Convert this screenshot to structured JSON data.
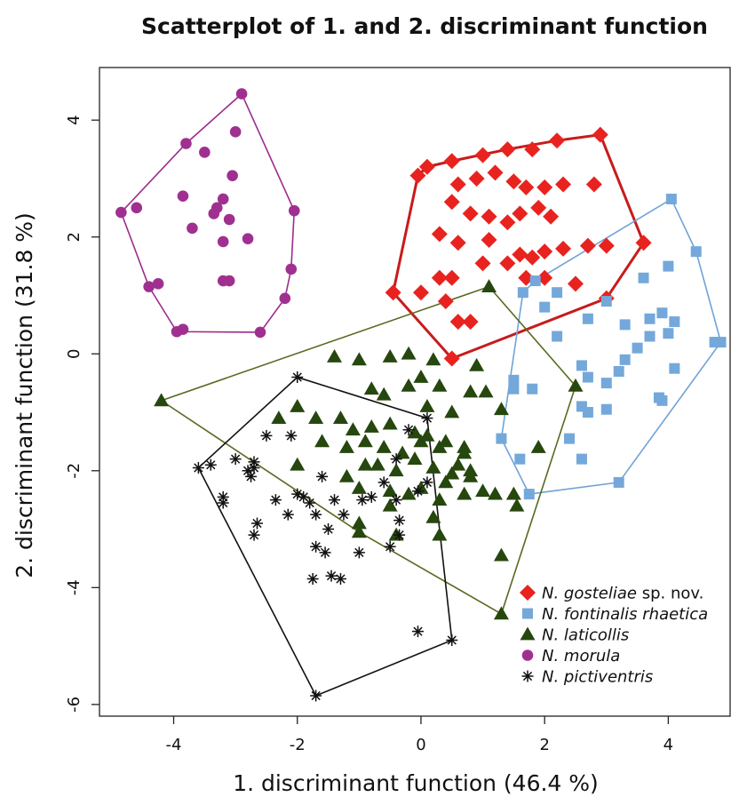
{
  "chart_data": {
    "type": "scatter",
    "title": "Scatterplot of 1. and 2. discriminant function",
    "xlabel": "1. discriminant function (46.4 %)",
    "ylabel": "2. discriminant function (31.8 %)",
    "xlim": [
      -5.2,
      5.0
    ],
    "ylim": [
      -6.2,
      4.9
    ],
    "xticks": [
      -4,
      -2,
      0,
      2,
      4
    ],
    "yticks": [
      -6,
      -4,
      -2,
      0,
      2,
      4
    ],
    "xtick_labels": [
      "-4",
      "-2",
      "0",
      "2",
      "4"
    ],
    "ytick_labels": [
      "-6",
      "-4",
      "-2",
      "0",
      "2",
      "4"
    ],
    "grid": false,
    "legend_position": "bottom-right",
    "series": [
      {
        "name_italic": "N. gosteliae",
        "name_suffix": " sp. nov.",
        "marker": "diamond",
        "color": "#e8231f",
        "hull_color": "#c81b1b",
        "points": [
          [
            -0.45,
            1.05
          ],
          [
            -0.05,
            3.05
          ],
          [
            0.1,
            3.2
          ],
          [
            0.5,
            3.3
          ],
          [
            1.0,
            3.4
          ],
          [
            1.4,
            3.5
          ],
          [
            1.8,
            3.5
          ],
          [
            2.2,
            3.65
          ],
          [
            2.9,
            3.75
          ],
          [
            0.6,
            2.9
          ],
          [
            0.9,
            3.0
          ],
          [
            1.2,
            3.1
          ],
          [
            1.5,
            2.95
          ],
          [
            1.7,
            2.85
          ],
          [
            2.0,
            2.85
          ],
          [
            2.3,
            2.9
          ],
          [
            2.8,
            2.9
          ],
          [
            0.5,
            2.6
          ],
          [
            0.8,
            2.4
          ],
          [
            1.1,
            2.35
          ],
          [
            1.4,
            2.25
          ],
          [
            1.6,
            2.4
          ],
          [
            1.9,
            2.5
          ],
          [
            2.1,
            2.35
          ],
          [
            0.3,
            2.05
          ],
          [
            0.6,
            1.9
          ],
          [
            1.1,
            1.95
          ],
          [
            1.6,
            1.7
          ],
          [
            1.8,
            1.65
          ],
          [
            2.0,
            1.75
          ],
          [
            2.3,
            1.8
          ],
          [
            2.7,
            1.85
          ],
          [
            3.0,
            1.85
          ],
          [
            3.6,
            1.9
          ],
          [
            0.3,
            1.3
          ],
          [
            0.5,
            1.3
          ],
          [
            1.0,
            1.55
          ],
          [
            1.4,
            1.55
          ],
          [
            1.7,
            1.3
          ],
          [
            2.0,
            1.3
          ],
          [
            0.0,
            1.05
          ],
          [
            0.4,
            0.9
          ],
          [
            0.8,
            0.55
          ],
          [
            0.6,
            0.55
          ],
          [
            2.5,
            1.2
          ],
          [
            3.0,
            0.95
          ],
          [
            0.5,
            -0.08
          ]
        ]
      },
      {
        "name_italic": "N. fontinalis rhaetica",
        "name_suffix": "",
        "marker": "square",
        "color": "#74a8da",
        "hull_color": "#6fa3d6",
        "points": [
          [
            4.05,
            2.65
          ],
          [
            4.45,
            1.75
          ],
          [
            1.85,
            1.25
          ],
          [
            2.2,
            1.05
          ],
          [
            3.6,
            1.3
          ],
          [
            4.0,
            1.5
          ],
          [
            2.0,
            0.8
          ],
          [
            2.7,
            0.6
          ],
          [
            3.0,
            0.9
          ],
          [
            3.3,
            0.5
          ],
          [
            3.7,
            0.6
          ],
          [
            3.9,
            0.7
          ],
          [
            4.1,
            0.55
          ],
          [
            4.0,
            0.35
          ],
          [
            3.7,
            0.3
          ],
          [
            3.5,
            0.1
          ],
          [
            3.3,
            -0.1
          ],
          [
            3.2,
            -0.3
          ],
          [
            2.6,
            -0.2
          ],
          [
            2.7,
            -0.4
          ],
          [
            4.1,
            -0.25
          ],
          [
            4.75,
            0.2
          ],
          [
            4.85,
            0.2
          ],
          [
            1.5,
            -0.6
          ],
          [
            1.5,
            -0.45
          ],
          [
            1.8,
            -0.6
          ],
          [
            2.6,
            -0.9
          ],
          [
            2.7,
            -1.0
          ],
          [
            3.0,
            -0.95
          ],
          [
            3.0,
            -0.5
          ],
          [
            3.9,
            -0.8
          ],
          [
            1.3,
            -1.45
          ],
          [
            2.4,
            -1.45
          ],
          [
            2.6,
            -1.8
          ],
          [
            3.2,
            -2.2
          ],
          [
            1.75,
            -2.4
          ],
          [
            1.65,
            1.05
          ],
          [
            3.85,
            -0.75
          ],
          [
            1.6,
            -1.8
          ],
          [
            2.2,
            0.3
          ]
        ]
      },
      {
        "name_italic": "N. laticollis",
        "name_suffix": "",
        "marker": "triangle",
        "color": "#26470e",
        "hull_color": "#566b20",
        "points": [
          [
            -4.2,
            -0.8
          ],
          [
            1.1,
            1.15
          ],
          [
            -1.4,
            -0.05
          ],
          [
            -1.0,
            -0.1
          ],
          [
            -0.5,
            -0.05
          ],
          [
            -0.2,
            0.0
          ],
          [
            0.2,
            -0.1
          ],
          [
            0.9,
            -0.2
          ],
          [
            2.5,
            -0.55
          ],
          [
            -0.8,
            -0.6
          ],
          [
            -0.6,
            -0.7
          ],
          [
            -0.2,
            -0.55
          ],
          [
            0.3,
            -0.55
          ],
          [
            0.8,
            -0.65
          ],
          [
            1.05,
            -0.65
          ],
          [
            1.3,
            -0.95
          ],
          [
            -2.0,
            -0.9
          ],
          [
            -1.7,
            -1.1
          ],
          [
            -1.3,
            -1.1
          ],
          [
            -1.1,
            -1.3
          ],
          [
            -0.8,
            -1.25
          ],
          [
            -0.5,
            -1.2
          ],
          [
            -0.1,
            -1.35
          ],
          [
            0.1,
            -1.4
          ],
          [
            0.4,
            -1.5
          ],
          [
            0.7,
            -1.7
          ],
          [
            -1.6,
            -1.5
          ],
          [
            -1.2,
            -1.6
          ],
          [
            -0.9,
            -1.5
          ],
          [
            -0.6,
            -1.6
          ],
          [
            -0.3,
            -1.7
          ],
          [
            0.0,
            -1.5
          ],
          [
            0.3,
            -1.6
          ],
          [
            0.6,
            -1.9
          ],
          [
            -2.0,
            -1.9
          ],
          [
            -1.2,
            -2.1
          ],
          [
            -0.7,
            -1.9
          ],
          [
            -0.4,
            -2.0
          ],
          [
            -0.1,
            -1.8
          ],
          [
            0.2,
            -1.95
          ],
          [
            0.5,
            -2.05
          ],
          [
            0.8,
            -2.1
          ],
          [
            -0.5,
            -2.35
          ],
          [
            -0.2,
            -2.4
          ],
          [
            0.0,
            -2.3
          ],
          [
            0.4,
            -2.2
          ],
          [
            0.7,
            -2.4
          ],
          [
            1.0,
            -2.35
          ],
          [
            1.2,
            -2.4
          ],
          [
            -1.0,
            -2.3
          ],
          [
            -0.5,
            -2.6
          ],
          [
            0.3,
            -2.5
          ],
          [
            1.5,
            -2.4
          ],
          [
            1.55,
            -2.6
          ],
          [
            -1.0,
            -2.9
          ],
          [
            -0.4,
            -3.1
          ],
          [
            0.2,
            -2.8
          ],
          [
            0.3,
            -3.1
          ],
          [
            -1.0,
            -3.05
          ],
          [
            1.3,
            -3.45
          ],
          [
            0.8,
            -2.0
          ],
          [
            0.7,
            -1.6
          ],
          [
            1.9,
            -1.6
          ],
          [
            0.0,
            -0.4
          ],
          [
            -2.3,
            -1.1
          ],
          [
            0.1,
            -0.9
          ],
          [
            0.5,
            -1.0
          ],
          [
            -0.9,
            -1.9
          ],
          [
            1.3,
            -4.45
          ]
        ]
      },
      {
        "name_italic": "N. morula",
        "name_suffix": "",
        "marker": "circle",
        "color": "#a0308f",
        "hull_color": "#9c2c8c",
        "points": [
          [
            -2.9,
            4.45
          ],
          [
            -3.8,
            3.6
          ],
          [
            -3.0,
            3.8
          ],
          [
            -3.5,
            3.45
          ],
          [
            -3.05,
            3.05
          ],
          [
            -3.85,
            2.7
          ],
          [
            -3.2,
            2.65
          ],
          [
            -3.3,
            2.5
          ],
          [
            -3.35,
            2.4
          ],
          [
            -3.1,
            2.3
          ],
          [
            -3.7,
            2.15
          ],
          [
            -2.8,
            1.97
          ],
          [
            -3.2,
            1.92
          ],
          [
            -4.85,
            2.42
          ],
          [
            -4.6,
            2.5
          ],
          [
            -2.05,
            2.45
          ],
          [
            -2.1,
            1.45
          ],
          [
            -3.2,
            1.25
          ],
          [
            -3.1,
            1.25
          ],
          [
            -4.25,
            1.2
          ],
          [
            -4.4,
            1.15
          ],
          [
            -2.2,
            0.95
          ],
          [
            -3.85,
            0.42
          ],
          [
            -3.95,
            0.38
          ],
          [
            -2.6,
            0.37
          ]
        ]
      },
      {
        "name_italic": "N. pictiventris",
        "name_suffix": "",
        "marker": "star",
        "color": "#111111",
        "hull_color": "#111111",
        "points": [
          [
            -2.0,
            -0.4
          ],
          [
            -3.6,
            -1.95
          ],
          [
            -3.4,
            -1.9
          ],
          [
            -3.0,
            -1.8
          ],
          [
            -2.7,
            -1.85
          ],
          [
            -2.8,
            -2.0
          ],
          [
            -2.5,
            -1.4
          ],
          [
            -2.1,
            -1.4
          ],
          [
            -3.2,
            -2.45
          ],
          [
            -3.2,
            -2.55
          ],
          [
            -2.75,
            -2.1
          ],
          [
            -2.35,
            -2.5
          ],
          [
            -2.15,
            -2.75
          ],
          [
            -2.0,
            -2.4
          ],
          [
            -1.9,
            -2.45
          ],
          [
            -1.6,
            -2.1
          ],
          [
            -1.4,
            -2.5
          ],
          [
            -1.8,
            -2.55
          ],
          [
            -1.7,
            -2.75
          ],
          [
            -1.5,
            -3.0
          ],
          [
            -1.25,
            -2.75
          ],
          [
            -0.95,
            -2.5
          ],
          [
            -0.8,
            -2.45
          ],
          [
            -0.6,
            -2.2
          ],
          [
            -0.4,
            -2.5
          ],
          [
            -0.35,
            -2.85
          ],
          [
            -0.35,
            -3.1
          ],
          [
            -0.05,
            -2.35
          ],
          [
            0.1,
            -2.2
          ],
          [
            -0.2,
            -1.3
          ],
          [
            0.1,
            -1.1
          ],
          [
            -2.65,
            -2.9
          ],
          [
            -2.7,
            -3.1
          ],
          [
            -1.7,
            -3.3
          ],
          [
            -1.75,
            -3.85
          ],
          [
            -1.45,
            -3.8
          ],
          [
            -1.3,
            -3.85
          ],
          [
            -1.55,
            -3.4
          ],
          [
            -0.5,
            -3.3
          ],
          [
            -0.05,
            -4.75
          ],
          [
            0.5,
            -4.9
          ],
          [
            -1.7,
            -5.85
          ],
          [
            -1.0,
            -3.4
          ],
          [
            -2.7,
            -1.95
          ],
          [
            -0.4,
            -1.8
          ]
        ]
      }
    ]
  }
}
